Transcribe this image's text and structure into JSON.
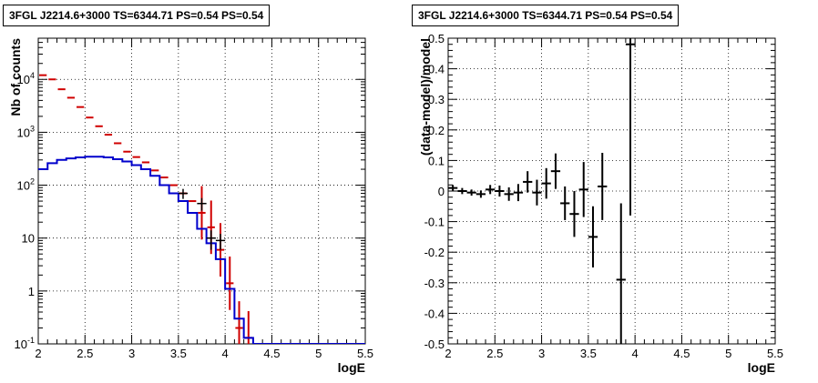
{
  "chart_data": [
    {
      "type": "line",
      "title": "3FGL J2214.6+3000 TS=6344.71 PS=0.54 PS=0.54",
      "xlabel": "logE",
      "ylabel": "Nb of counts",
      "xlim": [
        2,
        5.5
      ],
      "ylim": [
        0.1,
        60000
      ],
      "yscale": "log",
      "grid": true,
      "xticks": [
        "2",
        "2.5",
        "3",
        "3.5",
        "4",
        "4.5",
        "5",
        "5.5"
      ],
      "yticks": [
        "10^-1",
        "1",
        "10",
        "10^2",
        "10^3",
        "10^4"
      ],
      "yticks_values": [
        0.1,
        1,
        10,
        100,
        1000,
        10000
      ],
      "series": [
        {
          "color": "#d00000",
          "style": "marker-steps",
          "x": [
            2.05,
            2.15,
            2.25,
            2.35,
            2.45,
            2.55,
            2.65,
            2.75,
            2.85,
            2.95,
            3.05,
            3.15,
            3.25,
            3.35,
            3.45,
            3.55,
            3.65,
            3.75,
            3.85,
            3.95,
            4.05,
            4.15,
            4.25
          ],
          "values": [
            12000,
            10000,
            6500,
            4500,
            3000,
            1900,
            1300,
            900,
            620,
            430,
            340,
            270,
            190,
            140,
            100,
            70,
            50,
            30,
            16,
            6,
            1.4,
            0.2,
            0.13
          ]
        },
        {
          "color": "#0000cc",
          "style": "step",
          "x": [
            2.05,
            2.15,
            2.25,
            2.35,
            2.45,
            2.55,
            2.65,
            2.75,
            2.85,
            2.95,
            3.05,
            3.15,
            3.25,
            3.35,
            3.45,
            3.55,
            3.65,
            3.75,
            3.85,
            3.95,
            4.05,
            4.15,
            4.25,
            4.35,
            4.45,
            4.55,
            4.65,
            4.75,
            4.85,
            4.95,
            5.05,
            5.15,
            5.25,
            5.35,
            5.45
          ],
          "values": [
            200,
            260,
            300,
            320,
            335,
            345,
            345,
            335,
            310,
            280,
            240,
            200,
            150,
            100,
            70,
            50,
            30,
            15,
            8,
            4,
            1.1,
            0.3,
            0.13,
            0.1,
            0.1,
            0.1,
            0.1,
            0.1,
            0.1,
            0.1,
            0.1,
            0.1,
            0.1,
            0.1,
            0.1
          ]
        },
        {
          "color": "#000000",
          "style": "errorbars",
          "x": [
            3.55,
            3.75,
            3.85,
            3.95
          ],
          "values": [
            70,
            45,
            10,
            9
          ],
          "err_low": [
            15,
            12,
            4,
            3
          ],
          "err_high": [
            15,
            12,
            4,
            3
          ]
        }
      ]
    },
    {
      "type": "scatter",
      "title": "3FGL J2214.6+3000 TS=6344.71 PS=0.54 PS=0.54",
      "xlabel": "logE",
      "ylabel": "(data-model)/model",
      "xlim": [
        2,
        5.5
      ],
      "ylim": [
        -0.5,
        0.5
      ],
      "grid": true,
      "xticks": [
        "2",
        "2.5",
        "3",
        "3.5",
        "4",
        "4.5",
        "5",
        "5.5"
      ],
      "yticks": [
        "-0.5",
        "-0.4",
        "-0.3",
        "-0.2",
        "-0.1",
        "0",
        "0.1",
        "0.2",
        "0.3",
        "0.4",
        "0.5"
      ],
      "series": [
        {
          "color": "#000000",
          "style": "errorbars",
          "x": [
            2.05,
            2.15,
            2.25,
            2.35,
            2.45,
            2.55,
            2.65,
            2.75,
            2.85,
            2.95,
            3.05,
            3.15,
            3.25,
            3.35,
            3.45,
            3.55,
            3.65,
            3.85,
            3.95
          ],
          "values": [
            0.01,
            0.0,
            -0.005,
            -0.01,
            0.005,
            0.0,
            -0.01,
            -0.005,
            0.03,
            -0.005,
            0.025,
            0.065,
            -0.04,
            -0.075,
            0.005,
            -0.15,
            0.015,
            -0.29,
            0.48
          ],
          "err": [
            0.01,
            0.01,
            0.01,
            0.012,
            0.015,
            0.018,
            0.022,
            0.028,
            0.035,
            0.042,
            0.05,
            0.058,
            0.055,
            0.075,
            0.09,
            0.1,
            0.11,
            0.25,
            0.56
          ],
          "xerr": 0.05
        }
      ]
    }
  ]
}
